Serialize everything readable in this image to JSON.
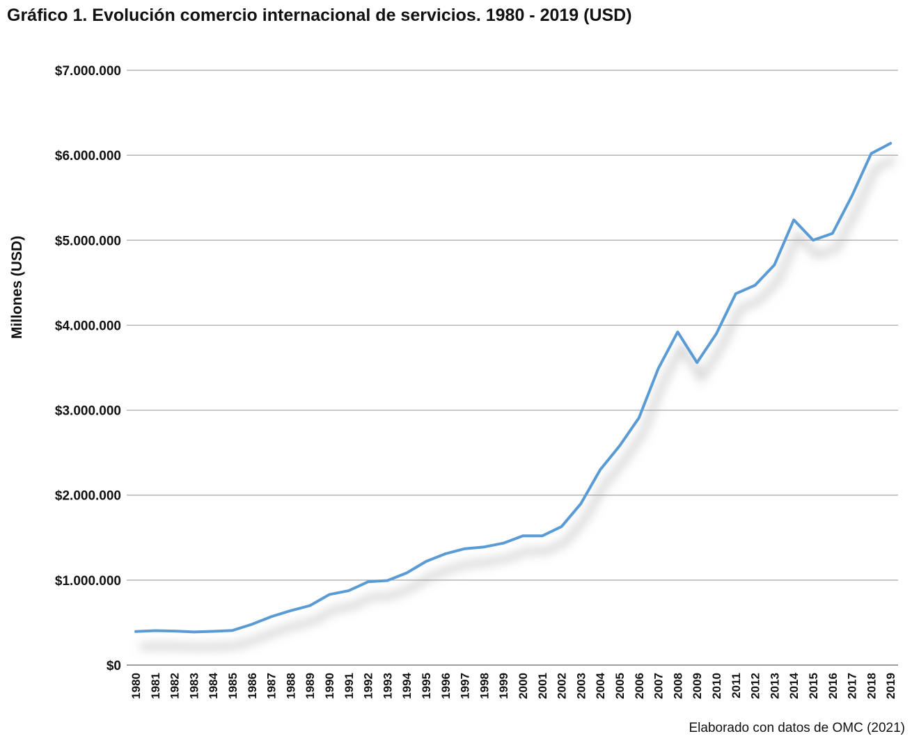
{
  "chart_data": {
    "type": "line",
    "title": "Gráfico 1. Evolución comercio internacional de servicios. 1980 - 2019 (USD)",
    "ylabel": "Millones (USD)",
    "xlabel": "",
    "source_note": "Elaborado con datos de OMC (2021)",
    "ylim": [
      0,
      7000000
    ],
    "yticks": [
      0,
      1000000,
      2000000,
      3000000,
      4000000,
      5000000,
      6000000,
      7000000
    ],
    "ytick_labels": [
      "$0",
      "$1.000.000",
      "$2.000.000",
      "$3.000.000",
      "$4.000.000",
      "$5.000.000",
      "$6.000.000",
      "$7.000.000"
    ],
    "grid": true,
    "line_color": "#5b9bd5",
    "x": [
      "1980",
      "1981",
      "1982",
      "1983",
      "1984",
      "1985",
      "1986",
      "1987",
      "1988",
      "1989",
      "1990",
      "1991",
      "1992",
      "1993",
      "1994",
      "1995",
      "1996",
      "1997",
      "1998",
      "1999",
      "2000",
      "2001",
      "2002",
      "2003",
      "2004",
      "2005",
      "2006",
      "2007",
      "2008",
      "2009",
      "2010",
      "2011",
      "2012",
      "2013",
      "2014",
      "2015",
      "2016",
      "2017",
      "2018",
      "2019"
    ],
    "series": [
      {
        "values": [
          395000,
          405000,
          400000,
          390000,
          397000,
          408000,
          480000,
          570000,
          640000,
          700000,
          830000,
          875000,
          980000,
          995000,
          1085000,
          1220000,
          1310000,
          1370000,
          1390000,
          1435000,
          1520000,
          1520000,
          1630000,
          1900000,
          2300000,
          2580000,
          2910000,
          3490000,
          3920000,
          3560000,
          3900000,
          4370000,
          4470000,
          4710000,
          5240000,
          5000000,
          5080000,
          5520000,
          6020000,
          6140000
        ]
      }
    ]
  }
}
